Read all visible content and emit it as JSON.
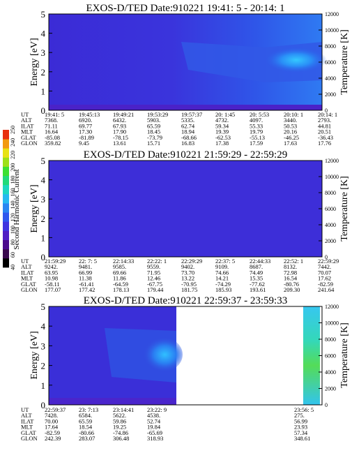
{
  "chart_data": [
    {
      "type": "heatmap",
      "title": "EXOS-D/TED   Date:910221  19:41: 5 - 20:14: 1",
      "ylabel": "Energy [eV]",
      "ylabel_right": "Temperature [K]",
      "ylim": [
        0,
        5
      ],
      "ylim_right": [
        0,
        12000
      ],
      "yticks": [
        "0",
        "1",
        "2",
        "3",
        "4",
        "5"
      ],
      "yticks_right": [
        "0",
        "2000",
        "4000",
        "6000",
        "8000",
        "10000",
        "12000"
      ],
      "row_labels": [
        "UT",
        "ALT",
        "ILAT",
        "MLT",
        "GLAT",
        "GLON"
      ],
      "columns": [
        [
          "19:41: 5",
          "7368.",
          "71.11",
          "16.64",
          "-85.08",
          "359.82"
        ],
        [
          "19:45:13",
          "6920.",
          "69.77",
          "17.30",
          "-81.89",
          "9.45"
        ],
        [
          "19:49:21",
          "6432.",
          "67.93",
          "17.90",
          "-78.15",
          "13.61"
        ],
        [
          "19:53:29",
          "5903.",
          "65.59",
          "18.45",
          "-73.79",
          "15.71"
        ],
        [
          "19:57:37",
          "5335.",
          "62.74",
          "18.94",
          "-68.66",
          "16.83"
        ],
        [
          "20: 1:45",
          "4732.",
          "59.34",
          "19.39",
          "-62.53",
          "17.38"
        ],
        [
          "20: 5:53",
          "4097.",
          "55.33",
          "19.79",
          "-55.13",
          "17.59"
        ],
        [
          "20:10: 1",
          "3440.",
          "50.53",
          "20.16",
          "-46.25",
          "17.63"
        ],
        [
          "20:14: 1",
          "2793.",
          "44.81",
          "20.51",
          "-36.43",
          "17.76"
        ]
      ]
    },
    {
      "type": "heatmap",
      "title": "EXOS-D/TED   Date:910221  21:59:29 - 22:59:29",
      "ylabel": "Energy [eV]",
      "ylabel_right": "Temperature [K]",
      "ylim": [
        0,
        5
      ],
      "ylim_right": [
        0,
        12000
      ],
      "yticks": [
        "0",
        "1",
        "2",
        "3",
        "4",
        "5"
      ],
      "yticks_right": [
        "0",
        "2000",
        "4000",
        "6000",
        "8000",
        "10000",
        "12000"
      ],
      "row_labels": [
        "UT",
        "ALT",
        "ILAT",
        "MLT",
        "GLAT",
        "GLON"
      ],
      "columns": [
        [
          "21:59:29",
          "9242.",
          "63.95",
          "10.98",
          "-58.11",
          "177.07"
        ],
        [
          "22: 7: 5",
          "9481.",
          "66.99",
          "11.38",
          "-61.41",
          "177.42"
        ],
        [
          "22:14:33",
          "9585.",
          "69.66",
          "11.86",
          "-64.59",
          "178.13"
        ],
        [
          "22:22: 1",
          "9559.",
          "71.95",
          "12.46",
          "-67.75",
          "179.44"
        ],
        [
          "22:29:29",
          "9402.",
          "73.70",
          "13.22",
          "-70.95",
          "181.75"
        ],
        [
          "22:37: 5",
          "9109.",
          "74.66",
          "14.21",
          "-74.29",
          "185.93"
        ],
        [
          "22:44:33",
          "8687.",
          "74.49",
          "15.35",
          "-77.62",
          "193.61"
        ],
        [
          "22:52: 1",
          "8132.",
          "72.98",
          "16.54",
          "-80.76",
          "209.30"
        ],
        [
          "22:59:29",
          "7442.",
          "70.07",
          "17.62",
          "-82.59",
          "241.64"
        ]
      ]
    },
    {
      "type": "heatmap",
      "title": "EXOS-D/TED   Date:910221  22:59:37 - 23:59:33",
      "ylabel": "Energy [eV]",
      "ylabel_right": "Temperature [K]",
      "ylim": [
        0,
        5
      ],
      "ylim_right": [
        0,
        12000
      ],
      "yticks": [
        "0",
        "1",
        "2",
        "3",
        "4",
        "5"
      ],
      "yticks_right": [
        "0",
        "2000",
        "4000",
        "6000",
        "8000",
        "10000",
        "12000"
      ],
      "row_labels": [
        "UT",
        "ALT",
        "ILAT",
        "MLT",
        "GLAT",
        "GLON"
      ],
      "columns": [
        [
          "22:59:37",
          "7428.",
          "70.00",
          "17.64",
          "-82.59",
          "242.39"
        ],
        [
          "23: 7:13",
          "6584.",
          "65.59",
          "18.54",
          "-80.66",
          "283.07"
        ],
        [
          "23:14:41",
          "5622.",
          "59.86",
          "19.25",
          "-74.86",
          "306.48"
        ],
        [
          "23:22: 9",
          "4538.",
          "52.74",
          "19.84",
          "-65.69",
          "318.93"
        ]
      ],
      "columns_late": [
        [
          "23:56: 5",
          "275.",
          "56.99",
          "23.93",
          "57.34",
          "348.61"
        ]
      ]
    }
  ],
  "colorbar": {
    "label": "Second Harmonic Current",
    "ticks": [
      "40",
      "60",
      "80",
      "100",
      "120",
      "140",
      "160",
      "180",
      "200",
      "220",
      "240",
      "250"
    ]
  }
}
